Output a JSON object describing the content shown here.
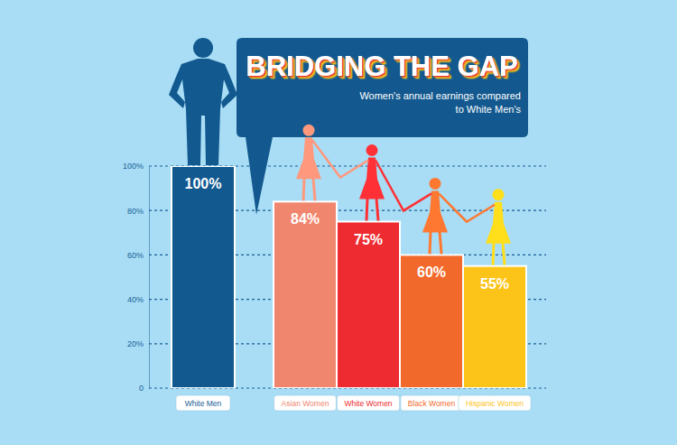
{
  "chart_data": {
    "type": "bar",
    "title": "BRIDGING THE GAP",
    "subtitle": "Women's annual earnings compared to White Men's",
    "categories": [
      "White Men",
      "Asian Women",
      "White Women",
      "Black Women",
      "Hispanic Women"
    ],
    "values": [
      100,
      84,
      75,
      60,
      55
    ],
    "value_labels": [
      "100%",
      "84%",
      "75%",
      "60%",
      "55%"
    ],
    "colors": [
      "#11598f",
      "#f0866e",
      "#ed2b30",
      "#f26a2b",
      "#fcc419"
    ],
    "ylim": [
      0,
      100
    ],
    "yticks": [
      0,
      {
        "value": 20,
        "label": "20%"
      },
      {
        "value": 40,
        "label": "40%"
      },
      {
        "value": 60,
        "label": "60%"
      },
      {
        "value": 80,
        "label": "80%"
      },
      {
        "value": 100,
        "label": "100%"
      }
    ],
    "grid": true,
    "data_labels": true
  }
}
